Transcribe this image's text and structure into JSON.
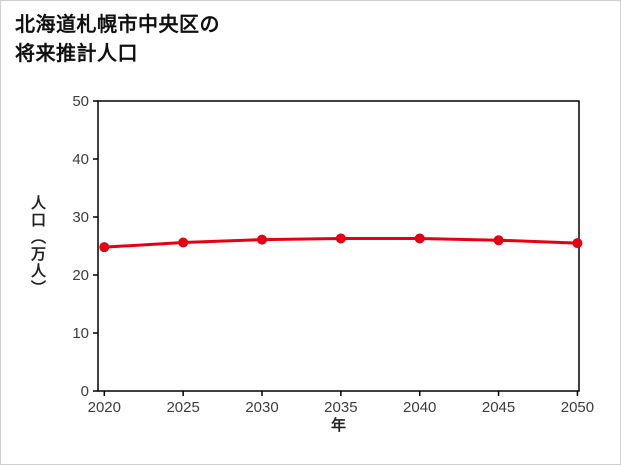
{
  "title": {
    "line1": "北海道札幌市中央区の",
    "line2": "将来推計人口"
  },
  "chart_data": {
    "type": "line",
    "title": "北海道札幌市中央区の将来推計人口",
    "xlabel": "年",
    "ylabel": "人口（万人）",
    "x": [
      2020,
      2025,
      2030,
      2035,
      2040,
      2045,
      2050
    ],
    "values": [
      24.8,
      25.6,
      26.1,
      26.3,
      26.3,
      26.0,
      25.5
    ],
    "xlim": [
      2019.6,
      2050.1
    ],
    "ylim": [
      0,
      50
    ],
    "yticks": [
      0,
      10,
      20,
      30,
      40,
      50
    ],
    "grid": false,
    "legend": "none",
    "line_color": "#e60012",
    "marker": "circle",
    "axis_color": "#000000"
  }
}
